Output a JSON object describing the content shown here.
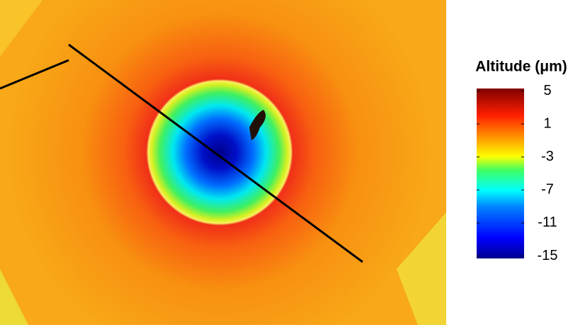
{
  "chart_data": {
    "type": "colormap",
    "colorbar_title": "Altitude (μm)",
    "clim": [
      -15.3,
      5.3
    ],
    "cticks": [
      5,
      1,
      -3,
      -7,
      -11,
      -15
    ]
  }
}
